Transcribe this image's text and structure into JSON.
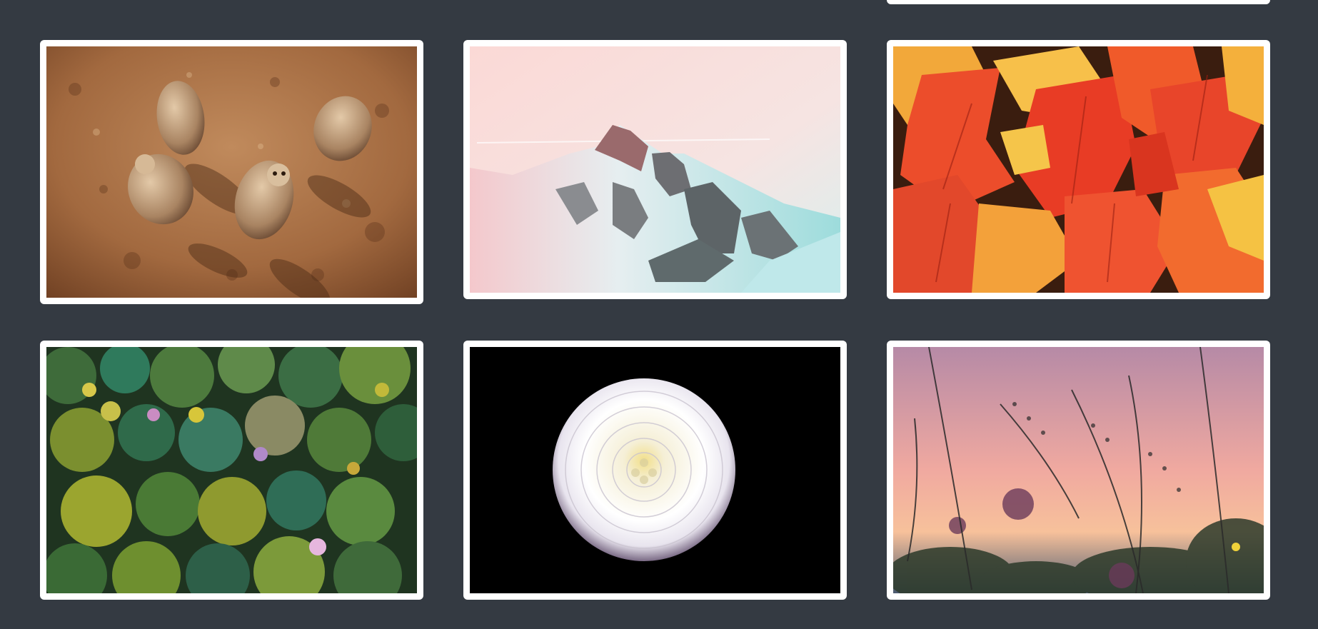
{
  "gallery": {
    "background": "#343a42",
    "frame_color": "#ffffff",
    "cards": [
      {
        "id": "partial-top",
        "subject": "image-partially-visible"
      },
      {
        "id": "meerkats",
        "subject": "meerkats-on-sand"
      },
      {
        "id": "mountain",
        "subject": "snowy-mountain-pastel-sky"
      },
      {
        "id": "leaves",
        "subject": "red-autumn-leaves"
      },
      {
        "id": "forest",
        "subject": "aerial-forest-canopy"
      },
      {
        "id": "dahlia",
        "subject": "white-dahlia-black-background"
      },
      {
        "id": "grass",
        "subject": "wild-grass-sunset-silhouette"
      }
    ]
  }
}
